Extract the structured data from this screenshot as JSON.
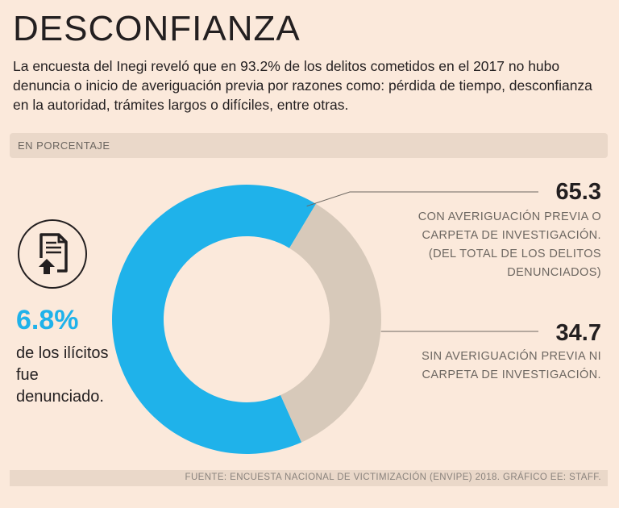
{
  "title": "DESCONFIANZA",
  "subtitle": "La encuesta del Inegi reveló que en 93.2% de los delitos cometidos en el 2017 no hubo denuncia o inicio de averiguación previa por razones como: pérdida de tiempo, desconfianza en la autoridad, trámites largos o difíciles, entre otras.",
  "unit_label": "EN PORCENTAJE",
  "callout": {
    "icon": "document-upload-icon",
    "value": "6.8%",
    "text": "de los ilícitos fue denunciado."
  },
  "source": "FUENTE: ENCUESTA NACIONAL DE VICTIMIZACIÓN (ENVIPE) 2018. GRÁFICO EE: STAFF.",
  "colors": {
    "background": "#fbe9db",
    "accent_blue": "#1fb2ea",
    "beige": "#d7c9ba",
    "text": "#231f20",
    "muted": "#6d6761"
  },
  "chart_data": {
    "type": "pie",
    "variant": "donut",
    "unit": "%",
    "series": [
      {
        "name": "con_averiguacion",
        "value": 65.3,
        "value_label": "65.3",
        "label_lines": [
          "CON AVERIGUACIÓN PREVIA O",
          "CARPETA DE INVESTIGACIÓN.",
          "(DEL TOTAL DE LOS DELITOS",
          "DENUNCIADOS)"
        ],
        "color": "#1fb2ea"
      },
      {
        "name": "sin_averiguacion",
        "value": 34.7,
        "value_label": "34.7",
        "label_lines": [
          "SIN AVERIGUACIÓN PREVIA NI",
          "CARPETA DE INVESTIGACIÓN."
        ],
        "color": "#d7c9ba"
      }
    ]
  }
}
